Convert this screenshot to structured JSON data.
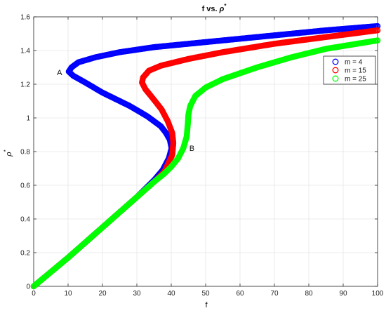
{
  "chart_data": {
    "type": "scatter",
    "title": {
      "main": "f vs. ",
      "symbol": "ρ",
      "sup": "*"
    },
    "xlabel": "f",
    "ylabel": {
      "symbol": "ρ",
      "sup": "*"
    },
    "xlim": [
      0,
      100
    ],
    "ylim": [
      0,
      1.6
    ],
    "xticks": [
      "0",
      "10",
      "20",
      "30",
      "40",
      "50",
      "60",
      "70",
      "80",
      "90",
      "100"
    ],
    "yticks": [
      "0",
      "0.2",
      "0.4",
      "0.6",
      "0.8",
      "1",
      "1.2",
      "1.4",
      "1.6"
    ],
    "grid": true,
    "legend_position": "top-right",
    "annotations": [
      {
        "text": "A",
        "x": 7.5,
        "y": 1.27
      },
      {
        "text": "B",
        "x": 46,
        "y": 0.82
      }
    ],
    "series": [
      {
        "name": "m = 4",
        "color": "#0000ff",
        "x": [
          0,
          10,
          20,
          30,
          35,
          37.5,
          39.3,
          40.1,
          39.6,
          38.5,
          37,
          33,
          28,
          24,
          20,
          15,
          11.5,
          10.2,
          11,
          13,
          18,
          25,
          35,
          50,
          70,
          85,
          100
        ],
        "y": [
          0,
          0.17,
          0.35,
          0.53,
          0.63,
          0.69,
          0.76,
          0.82,
          0.87,
          0.91,
          0.95,
          1.01,
          1.07,
          1.11,
          1.15,
          1.21,
          1.25,
          1.275,
          1.3,
          1.33,
          1.36,
          1.39,
          1.42,
          1.45,
          1.49,
          1.52,
          1.545
        ]
      },
      {
        "name": "m = 15",
        "color": "#ff0000",
        "x": [
          0,
          10,
          20,
          30,
          35,
          38,
          40.3,
          40.6,
          40.3,
          39,
          37.2,
          34.5,
          32.5,
          31.5,
          31.8,
          33.5,
          37,
          45,
          55,
          70,
          85,
          100
        ],
        "y": [
          0,
          0.17,
          0.35,
          0.53,
          0.62,
          0.68,
          0.78,
          0.85,
          0.91,
          0.98,
          1.05,
          1.12,
          1.17,
          1.21,
          1.24,
          1.28,
          1.31,
          1.35,
          1.39,
          1.44,
          1.48,
          1.52
        ]
      },
      {
        "name": "m = 25",
        "color": "#00ff00",
        "x": [
          0,
          10,
          20,
          30,
          35,
          38,
          40,
          42,
          43.5,
          44.5,
          44.8,
          45,
          45.5,
          47,
          50,
          55,
          65,
          75,
          85,
          100
        ],
        "y": [
          0,
          0.17,
          0.35,
          0.53,
          0.62,
          0.67,
          0.71,
          0.76,
          0.82,
          0.89,
          0.96,
          1.02,
          1.07,
          1.13,
          1.18,
          1.23,
          1.3,
          1.36,
          1.41,
          1.46
        ]
      }
    ]
  }
}
